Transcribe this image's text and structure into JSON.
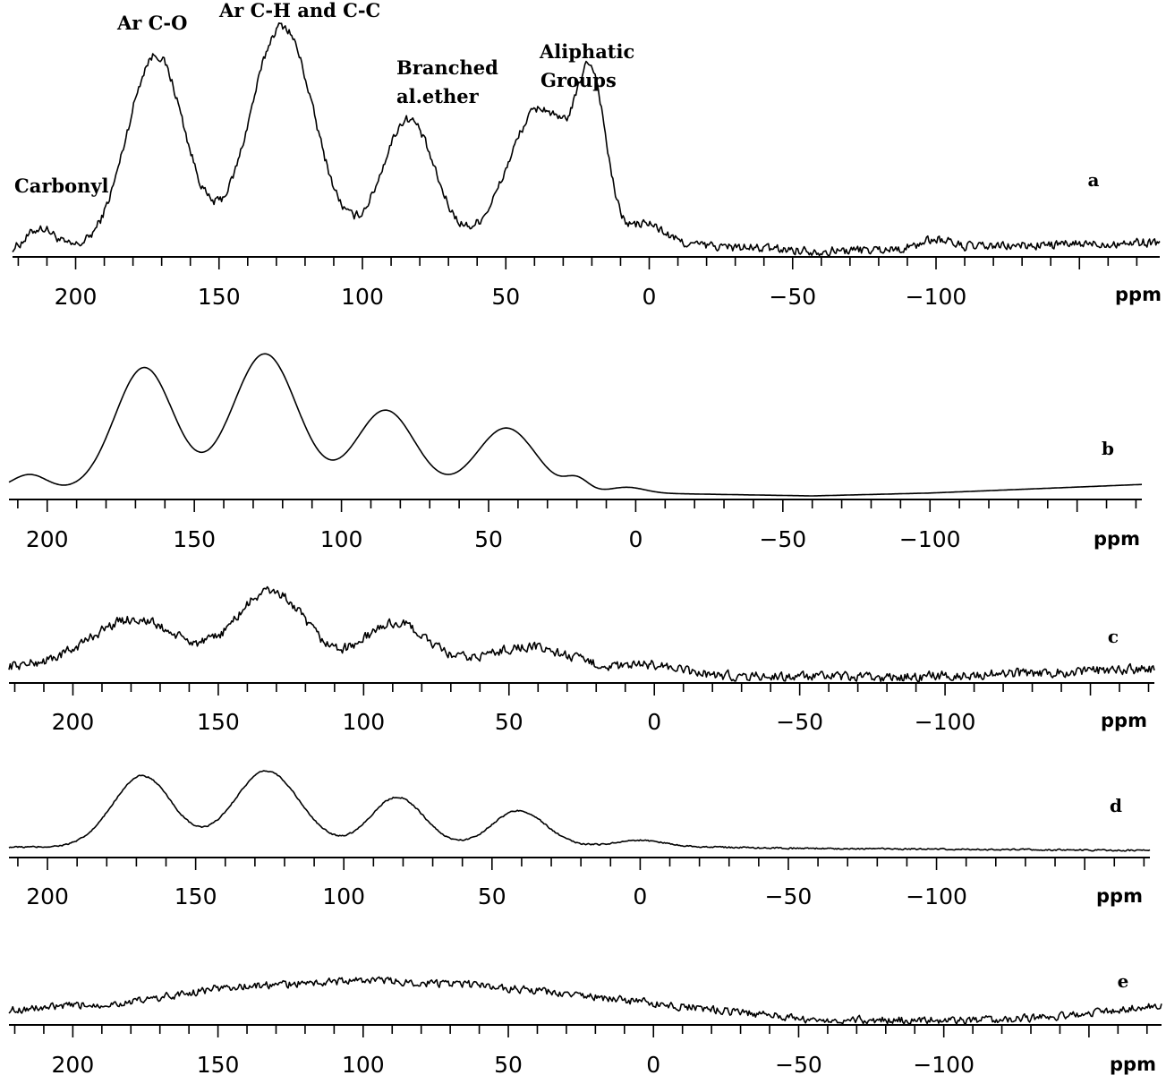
{
  "chart_data": [
    {
      "type": "line",
      "panel": "a",
      "xlabel": "ppm",
      "xlim": [
        222,
        -178
      ],
      "tick_values": [
        200,
        150,
        100,
        50,
        0,
        -50,
        -100
      ],
      "tick_labels": [
        "200",
        "150",
        "100",
        "50",
        "0",
        "−50",
        "−100"
      ],
      "annotations": [
        {
          "text": "Carbonyl",
          "x": 210
        },
        {
          "text": "Ar C-O",
          "x": 172
        },
        {
          "text": "Ar C-H and C-C",
          "x": 128
        },
        {
          "text": "Branched",
          "x": 84
        },
        {
          "text": "al.ether",
          "x": 84
        },
        {
          "text": "Aliphatic",
          "x": 28
        },
        {
          "text": "Groups",
          "x": 28
        }
      ],
      "noise": 0.018,
      "baseline": [
        [
          222,
          0.01
        ],
        [
          120,
          0.03
        ],
        [
          0,
          0.05
        ],
        [
          -25,
          0.03
        ],
        [
          -60,
          0.01
        ],
        [
          -178,
          0.05
        ]
      ],
      "peaks": [
        {
          "center": 212,
          "height": 0.1,
          "width": 5
        },
        {
          "center": 172,
          "height": 0.86,
          "width": 10
        },
        {
          "center": 128,
          "height": 0.98,
          "width": 11
        },
        {
          "center": 84,
          "height": 0.56,
          "width": 9
        },
        {
          "center": 38,
          "height": 0.6,
          "width": 11
        },
        {
          "center": 20,
          "height": 0.63,
          "width": 5
        },
        {
          "center": 1,
          "height": 0.08,
          "width": 6
        },
        {
          "center": -100,
          "height": 0.04,
          "width": 5
        }
      ]
    },
    {
      "type": "line",
      "panel": "b",
      "xlabel": "ppm",
      "xlim": [
        213,
        -172
      ],
      "tick_values": [
        200,
        150,
        100,
        50,
        0,
        -50,
        -100
      ],
      "tick_labels": [
        "200",
        "150",
        "100",
        "50",
        "0",
        "−50",
        "−100"
      ],
      "noise": 0,
      "baseline": [
        [
          213,
          0.04
        ],
        [
          0,
          0.02
        ],
        [
          -60,
          0.0
        ],
        [
          -100,
          0.02
        ],
        [
          -172,
          0.08
        ]
      ],
      "peaks": [
        {
          "center": 206,
          "height": 0.11,
          "width": 6
        },
        {
          "center": 167,
          "height": 0.86,
          "width": 10
        },
        {
          "center": 126,
          "height": 0.96,
          "width": 11
        },
        {
          "center": 85,
          "height": 0.57,
          "width": 10
        },
        {
          "center": 44,
          "height": 0.45,
          "width": 10
        },
        {
          "center": 20,
          "height": 0.09,
          "width": 4
        },
        {
          "center": 3,
          "height": 0.04,
          "width": 6
        }
      ]
    },
    {
      "type": "line",
      "panel": "c",
      "xlabel": "ppm",
      "xlim": [
        222,
        -172
      ],
      "tick_values": [
        200,
        150,
        100,
        50,
        0,
        -50,
        -100
      ],
      "tick_labels": [
        "200",
        "150",
        "100",
        "50",
        "0",
        "−50",
        "−100"
      ],
      "noise": 0.05,
      "baseline": [
        [
          222,
          0.15
        ],
        [
          120,
          0.12
        ],
        [
          0,
          0.12
        ],
        [
          -25,
          0.04
        ],
        [
          -80,
          0.02
        ],
        [
          -172,
          0.12
        ]
      ],
      "peaks": [
        {
          "center": 179,
          "height": 0.55,
          "width": 15
        },
        {
          "center": 132,
          "height": 0.88,
          "width": 12
        },
        {
          "center": 89,
          "height": 0.52,
          "width": 11
        },
        {
          "center": 44,
          "height": 0.25,
          "width": 14
        },
        {
          "center": 0,
          "height": 0.05,
          "width": 6
        }
      ]
    },
    {
      "type": "line",
      "panel": "d",
      "xlabel": "ppm",
      "xlim": [
        213,
        -172
      ],
      "tick_values": [
        200,
        150,
        100,
        50,
        0,
        -50,
        -100
      ],
      "tick_labels": [
        "200",
        "150",
        "100",
        "50",
        "0",
        "−50",
        "−100"
      ],
      "noise": 0.006,
      "baseline": [
        [
          213,
          0.06
        ],
        [
          195,
          0.06
        ],
        [
          0,
          0.07
        ],
        [
          -50,
          0.05
        ],
        [
          -172,
          0.03
        ]
      ],
      "peaks": [
        {
          "center": 168,
          "height": 0.62,
          "width": 10
        },
        {
          "center": 126,
          "height": 0.66,
          "width": 11
        },
        {
          "center": 82,
          "height": 0.43,
          "width": 9
        },
        {
          "center": 41,
          "height": 0.31,
          "width": 9
        },
        {
          "center": 0,
          "height": 0.05,
          "width": 8
        }
      ]
    },
    {
      "type": "line",
      "panel": "e",
      "xlabel": "ppm",
      "xlim": [
        222,
        -175
      ],
      "tick_values": [
        200,
        150,
        100,
        50,
        0,
        -50,
        -100
      ],
      "tick_labels": [
        "200",
        "150",
        "100",
        "50",
        "0",
        "−50",
        "−100"
      ],
      "noise": 0.06,
      "baseline": [
        [
          222,
          0.2
        ],
        [
          180,
          0.33
        ],
        [
          150,
          0.58
        ],
        [
          100,
          0.72
        ],
        [
          60,
          0.63
        ],
        [
          20,
          0.42
        ],
        [
          -25,
          0.18
        ],
        [
          -55,
          0.03
        ],
        [
          -120,
          0.02
        ],
        [
          -150,
          0.14
        ],
        [
          -175,
          0.3
        ]
      ],
      "peaks": []
    }
  ]
}
